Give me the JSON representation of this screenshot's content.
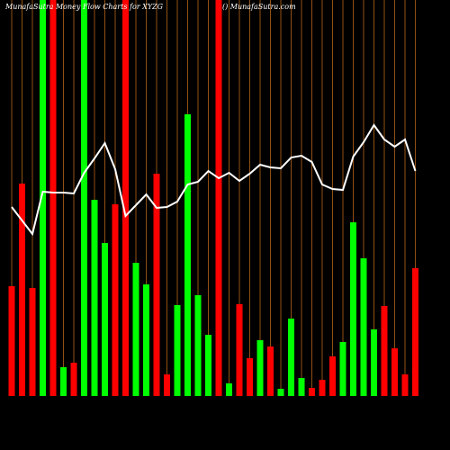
{
  "chart_data": {
    "type": "bar",
    "title": "MunafaSutra  Money Flow  Charts for XYZG",
    "subtitle": "() MunafaSutra.com",
    "categories": [
      null,
      null,
      null,
      null,
      null,
      null,
      null,
      null,
      null,
      null,
      null,
      null,
      null,
      null,
      null,
      null,
      null,
      null,
      null,
      null,
      null,
      null,
      null,
      null,
      null,
      null,
      null,
      null,
      null,
      null,
      null,
      null,
      null,
      null,
      null,
      null,
      null,
      null,
      null,
      null
    ],
    "values": [
      122,
      236,
      120,
      440,
      440,
      32,
      37,
      440,
      218,
      170,
      213,
      440,
      148,
      124,
      247,
      24,
      101,
      313,
      112,
      68,
      440,
      14,
      102,
      42,
      62,
      55,
      8,
      86,
      20,
      9,
      18,
      44,
      60,
      193,
      153,
      74,
      100,
      53,
      24,
      142
    ],
    "colors": [
      "#ff0000",
      "#ff0000",
      "#ff0000",
      "#00ff00",
      "#ff0000",
      "#00ff00",
      "#ff0000",
      "#00ff00",
      "#00ff00",
      "#00ff00",
      "#ff0000",
      "#ff0000",
      "#00ff00",
      "#00ff00",
      "#ff0000",
      "#ff0000",
      "#00ff00",
      "#00ff00",
      "#00ff00",
      "#00ff00",
      "#ff0000",
      "#00ff00",
      "#ff0000",
      "#ff0000",
      "#00ff00",
      "#ff0000",
      "#00ff00",
      "#00ff00",
      "#00ff00",
      "#ff0000",
      "#ff0000",
      "#ff0000",
      "#00ff00",
      "#00ff00",
      "#00ff00",
      "#00ff00",
      "#ff0000",
      "#ff0000",
      "#ff0000",
      "#ff0000"
    ],
    "ylim": [
      0,
      440
    ],
    "line": {
      "color": "#ffffff",
      "values": [
        210,
        195,
        180,
        227,
        226,
        226,
        225,
        248,
        264,
        281,
        252,
        200,
        212,
        224,
        209,
        210,
        216,
        235,
        238,
        250,
        242,
        248,
        239,
        247,
        257,
        254,
        253,
        265,
        267,
        260,
        235,
        230,
        229,
        266,
        282,
        301,
        285,
        277,
        285,
        250
      ]
    },
    "grid_color": "#b8641a"
  }
}
